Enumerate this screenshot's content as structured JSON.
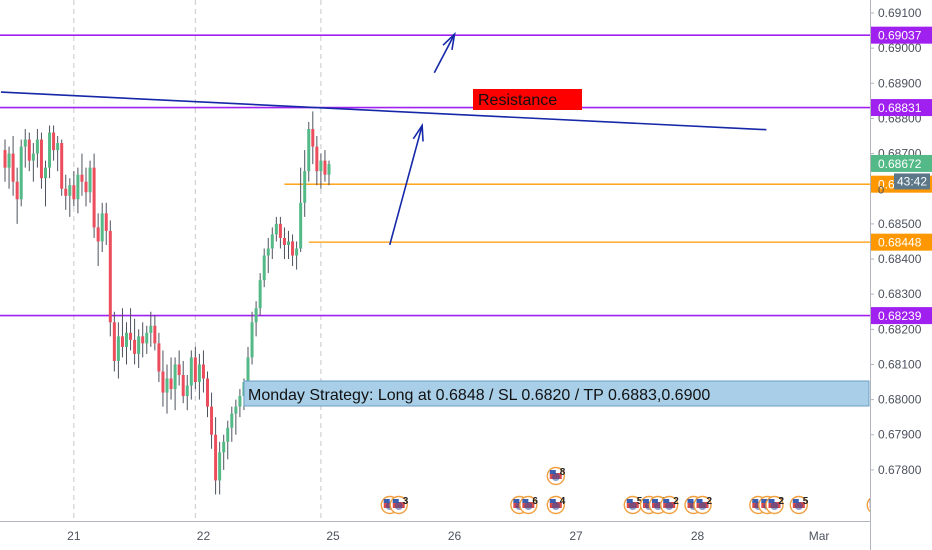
{
  "colors": {
    "up": "#53b987",
    "down": "#eb4d5c",
    "wick": "#4c525e",
    "purple": "#a020f0",
    "orange": "#ff9800",
    "trend": "#1528a8",
    "arrow": "#1528a8",
    "resistance_bg": "#ff0000",
    "note_bg": "#a9cfe8",
    "note_border": "#6a9cc4",
    "price_label_green": "#53b987",
    "current_tag": "#5b7788",
    "axis_text": "#4c525e",
    "grid": "#d8d8d8"
  },
  "chart_data": {
    "type": "candlestick",
    "title": "",
    "ylim": [
      0.6772,
      0.6912
    ],
    "y_ticks": [
      "0.69100",
      "0.69000",
      "0.68900",
      "0.68800",
      "0.68700",
      "0.68600",
      "0.68500",
      "0.68400",
      "0.68300",
      "0.68200",
      "0.68100",
      "0.68000",
      "0.67900",
      "0.67800"
    ],
    "x_ticks": [
      {
        "label": "21",
        "bar": 17
      },
      {
        "label": "22",
        "bar": 49
      },
      {
        "label": "25",
        "bar": 81
      },
      {
        "label": "26",
        "bar": 111
      },
      {
        "label": "27",
        "bar": 141
      },
      {
        "label": "28",
        "bar": 171
      },
      {
        "label": "Mar",
        "bar": 201
      }
    ],
    "day_separators": [
      17,
      47,
      78
    ],
    "candles": [
      [
        0.6871,
        0.6874,
        0.6862,
        0.6866
      ],
      [
        0.6866,
        0.6872,
        0.686,
        0.687
      ],
      [
        0.687,
        0.6875,
        0.6858,
        0.6862
      ],
      [
        0.6862,
        0.6866,
        0.685,
        0.6857
      ],
      [
        0.6857,
        0.6874,
        0.6855,
        0.6872
      ],
      [
        0.6872,
        0.6877,
        0.6866,
        0.6874
      ],
      [
        0.6874,
        0.6876,
        0.6865,
        0.6868
      ],
      [
        0.6868,
        0.6873,
        0.6862,
        0.687
      ],
      [
        0.687,
        0.6877,
        0.6866,
        0.6874
      ],
      [
        0.6874,
        0.6876,
        0.686,
        0.6863
      ],
      [
        0.6863,
        0.6868,
        0.6855,
        0.6866
      ],
      [
        0.6866,
        0.6878,
        0.6863,
        0.6876
      ],
      [
        0.6876,
        0.6878,
        0.6868,
        0.6871
      ],
      [
        0.6871,
        0.6875,
        0.6865,
        0.6873
      ],
      [
        0.6873,
        0.6874,
        0.6858,
        0.686
      ],
      [
        0.686,
        0.6864,
        0.6854,
        0.6858
      ],
      [
        0.6858,
        0.6863,
        0.6852,
        0.6861
      ],
      [
        0.6861,
        0.6865,
        0.6855,
        0.6857
      ],
      [
        0.6857,
        0.6866,
        0.6853,
        0.6864
      ],
      [
        0.6864,
        0.687,
        0.6858,
        0.6862
      ],
      [
        0.6862,
        0.6866,
        0.6855,
        0.6859
      ],
      [
        0.6859,
        0.6868,
        0.6856,
        0.6866
      ],
      [
        0.6866,
        0.687,
        0.6846,
        0.6849
      ],
      [
        0.6849,
        0.6853,
        0.6838,
        0.6845
      ],
      [
        0.6845,
        0.6856,
        0.6842,
        0.6853
      ],
      [
        0.6853,
        0.6856,
        0.6844,
        0.6848
      ],
      [
        0.6848,
        0.6851,
        0.6818,
        0.6822
      ],
      [
        0.6822,
        0.6825,
        0.6808,
        0.6811
      ],
      [
        0.6811,
        0.6822,
        0.6806,
        0.6818
      ],
      [
        0.6818,
        0.6826,
        0.6812,
        0.6815
      ],
      [
        0.6815,
        0.6822,
        0.681,
        0.6819
      ],
      [
        0.6819,
        0.6826,
        0.6814,
        0.6817
      ],
      [
        0.6817,
        0.6823,
        0.681,
        0.6813
      ],
      [
        0.6813,
        0.682,
        0.6809,
        0.6818
      ],
      [
        0.6818,
        0.6822,
        0.6812,
        0.6816
      ],
      [
        0.6816,
        0.6821,
        0.6813,
        0.6819
      ],
      [
        0.6819,
        0.6825,
        0.6815,
        0.6821
      ],
      [
        0.6821,
        0.6824,
        0.6814,
        0.6816
      ],
      [
        0.6816,
        0.6819,
        0.6805,
        0.6808
      ],
      [
        0.6808,
        0.6814,
        0.6798,
        0.6802
      ],
      [
        0.6802,
        0.681,
        0.6796,
        0.6806
      ],
      [
        0.6806,
        0.6812,
        0.68,
        0.6803
      ],
      [
        0.6803,
        0.6812,
        0.6797,
        0.681
      ],
      [
        0.681,
        0.6814,
        0.6804,
        0.6807
      ],
      [
        0.6807,
        0.6811,
        0.6799,
        0.6801
      ],
      [
        0.6801,
        0.6807,
        0.6797,
        0.6804
      ],
      [
        0.6804,
        0.6814,
        0.68,
        0.6812
      ],
      [
        0.6812,
        0.6815,
        0.6803,
        0.6805
      ],
      [
        0.6805,
        0.6813,
        0.68,
        0.681
      ],
      [
        0.681,
        0.6814,
        0.6802,
        0.6806
      ],
      [
        0.6806,
        0.6808,
        0.6795,
        0.6798
      ],
      [
        0.6798,
        0.6802,
        0.6786,
        0.679
      ],
      [
        0.679,
        0.6795,
        0.6773,
        0.6777
      ],
      [
        0.6777,
        0.6788,
        0.6773,
        0.6785
      ],
      [
        0.6785,
        0.679,
        0.678,
        0.6788
      ],
      [
        0.6788,
        0.6794,
        0.6783,
        0.6792
      ],
      [
        0.6792,
        0.6798,
        0.6788,
        0.6796
      ],
      [
        0.6796,
        0.68,
        0.679,
        0.6798
      ],
      [
        0.6798,
        0.6803,
        0.6795,
        0.6801
      ],
      [
        0.6801,
        0.6806,
        0.6797,
        0.6805
      ],
      [
        0.6805,
        0.6815,
        0.6802,
        0.6812
      ],
      [
        0.6812,
        0.6825,
        0.681,
        0.6822
      ],
      [
        0.6822,
        0.6828,
        0.6818,
        0.6826
      ],
      [
        0.6826,
        0.6836,
        0.6824,
        0.6834
      ],
      [
        0.6834,
        0.6843,
        0.6832,
        0.6841
      ],
      [
        0.6841,
        0.6846,
        0.6836,
        0.6843
      ],
      [
        0.6843,
        0.6849,
        0.684,
        0.6847
      ],
      [
        0.6847,
        0.6852,
        0.6845,
        0.685
      ],
      [
        0.685,
        0.6852,
        0.6843,
        0.6846
      ],
      [
        0.6846,
        0.6849,
        0.684,
        0.6844
      ],
      [
        0.6844,
        0.6848,
        0.684,
        0.6845
      ],
      [
        0.6845,
        0.6847,
        0.6838,
        0.6841
      ],
      [
        0.6841,
        0.6845,
        0.6837,
        0.6843
      ],
      [
        0.6843,
        0.6866,
        0.6842,
        0.6856
      ],
      [
        0.6856,
        0.6871,
        0.6852,
        0.6865
      ],
      [
        0.6865,
        0.6879,
        0.6862,
        0.6877
      ],
      [
        0.6877,
        0.6882,
        0.6867,
        0.6872
      ],
      [
        0.6872,
        0.6875,
        0.6861,
        0.6865
      ],
      [
        0.6865,
        0.687,
        0.686,
        0.6868
      ],
      [
        0.6868,
        0.6871,
        0.6862,
        0.6864
      ],
      [
        0.6864,
        0.6868,
        0.6861,
        0.6867
      ]
    ],
    "horizontal_lines": [
      {
        "price": 0.69037,
        "label": "0.69037",
        "color": "purple",
        "full": true
      },
      {
        "price": 0.68831,
        "label": "0.68831",
        "color": "purple",
        "full": true
      },
      {
        "price": 0.68613,
        "label": "0.68613",
        "color": "orange",
        "full": false,
        "start_bar": 69
      },
      {
        "price": 0.68448,
        "label": "0.68448",
        "color": "orange",
        "full": false,
        "start_bar": 75
      },
      {
        "price": 0.68239,
        "label": "0.68239",
        "color": "purple",
        "full": true
      }
    ],
    "current_price": {
      "price": 0.68672,
      "label": "0.68672",
      "countdown": "43:42",
      "partial": "0"
    },
    "trendline": {
      "p1": [
        -1,
        0.68875
      ],
      "p2": [
        188,
        0.68768
      ]
    },
    "resistance_label": "Resistance",
    "note_text": "Monday Strategy: Long at 0.6848 / SL 0.6820 / TP 0.6883,0.6900",
    "events": [
      {
        "bar": 95,
        "row": 0,
        "icons": 2,
        "count": "3"
      },
      {
        "bar": 127,
        "row": 0,
        "icons": 2,
        "count": "6"
      },
      {
        "bar": 136,
        "row": 0,
        "icons": 1,
        "count": "4"
      },
      {
        "bar": 136,
        "row": 1,
        "icons": 1,
        "count": "8"
      },
      {
        "bar": 155,
        "row": 0,
        "icons": 1,
        "count": "5"
      },
      {
        "bar": 159,
        "row": 0,
        "icons": 2,
        "count": "20"
      },
      {
        "bar": 164,
        "row": 0,
        "icons": 1,
        "count": "2"
      },
      {
        "bar": 170,
        "row": 0,
        "icons": 2,
        "count": "2"
      },
      {
        "bar": 186,
        "row": 0,
        "icons": 2,
        "count": "10"
      },
      {
        "bar": 190,
        "row": 0,
        "icons": 1,
        "count": "2"
      },
      {
        "bar": 196,
        "row": 0,
        "icons": 1,
        "count": "5"
      },
      {
        "bar": 215,
        "row": 0,
        "icons": 1,
        "count": ""
      }
    ]
  }
}
